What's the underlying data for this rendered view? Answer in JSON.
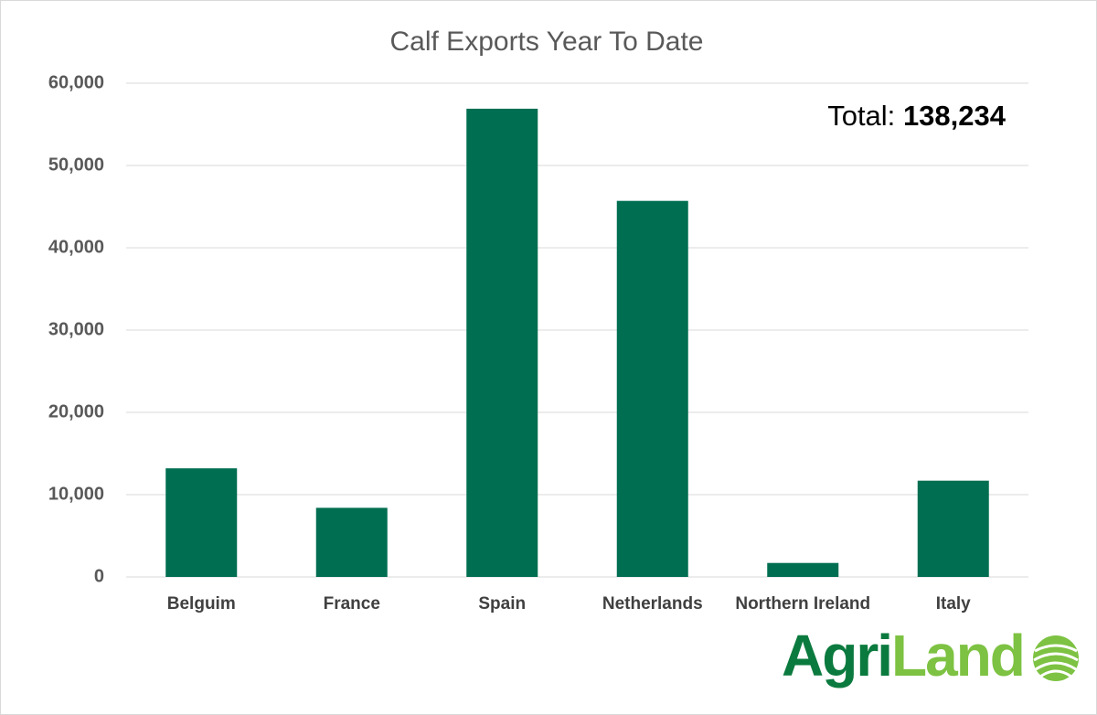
{
  "chart_data": {
    "type": "bar",
    "title": "Calf Exports Year To Date",
    "categories": [
      "Belguim",
      "France",
      "Spain",
      "Netherlands",
      "Northern Ireland",
      "Italy"
    ],
    "values": [
      13200,
      8400,
      56900,
      45700,
      1700,
      11700
    ],
    "color": "#006e51",
    "ylim": [
      0,
      60000
    ],
    "yticks": [
      0,
      {
        "value": 10000,
        "label": "10,000"
      },
      {
        "value": 20000,
        "label": "20,000"
      },
      {
        "value": 30000,
        "label": "30,000"
      },
      {
        "value": 40000,
        "label": "40,000"
      },
      {
        "value": 50000,
        "label": "50,000"
      },
      {
        "value": 60000,
        "label": "60,000"
      }
    ],
    "grid": true,
    "annotation": {
      "label": "Total:",
      "value": "138,234"
    },
    "logo": [
      "Agri",
      "Land"
    ]
  }
}
